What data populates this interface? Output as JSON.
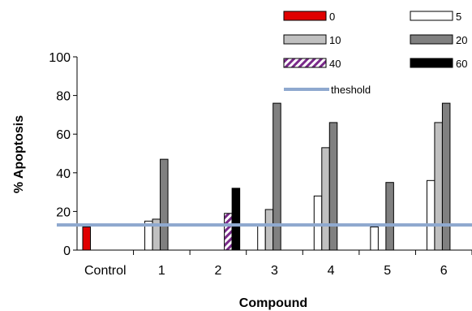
{
  "chart_data": {
    "type": "bar",
    "xlabel": "Compound",
    "ylabel": "% Apoptosis",
    "ylim": [
      0,
      100
    ],
    "yticks": [
      0,
      20,
      40,
      60,
      80,
      100
    ],
    "categories": [
      "Control",
      "1",
      "2",
      "3",
      "4",
      "5",
      "6"
    ],
    "series": [
      {
        "name": "0",
        "color": "#e00000",
        "pattern": "solid",
        "values": [
          12,
          null,
          null,
          null,
          null,
          null,
          null
        ]
      },
      {
        "name": "5",
        "color": "#ffffff",
        "pattern": "solid",
        "values": [
          null,
          15,
          null,
          13,
          28,
          12,
          36
        ]
      },
      {
        "name": "10",
        "color": "#c0c0c0",
        "pattern": "solid",
        "values": [
          null,
          16,
          null,
          21,
          53,
          null,
          66
        ]
      },
      {
        "name": "20",
        "color": "#808080",
        "pattern": "solid",
        "values": [
          null,
          47,
          null,
          76,
          66,
          35,
          76
        ]
      },
      {
        "name": "40",
        "color": "#7a2a8a",
        "pattern": "hatch",
        "values": [
          null,
          null,
          19,
          null,
          null,
          null,
          null
        ]
      },
      {
        "name": "60",
        "color": "#000000",
        "pattern": "solid",
        "values": [
          null,
          null,
          32,
          null,
          null,
          null,
          null
        ]
      }
    ],
    "threshold": {
      "name": "theshold",
      "value": 13,
      "color": "#8fa9cf"
    },
    "legend": "top-right"
  }
}
